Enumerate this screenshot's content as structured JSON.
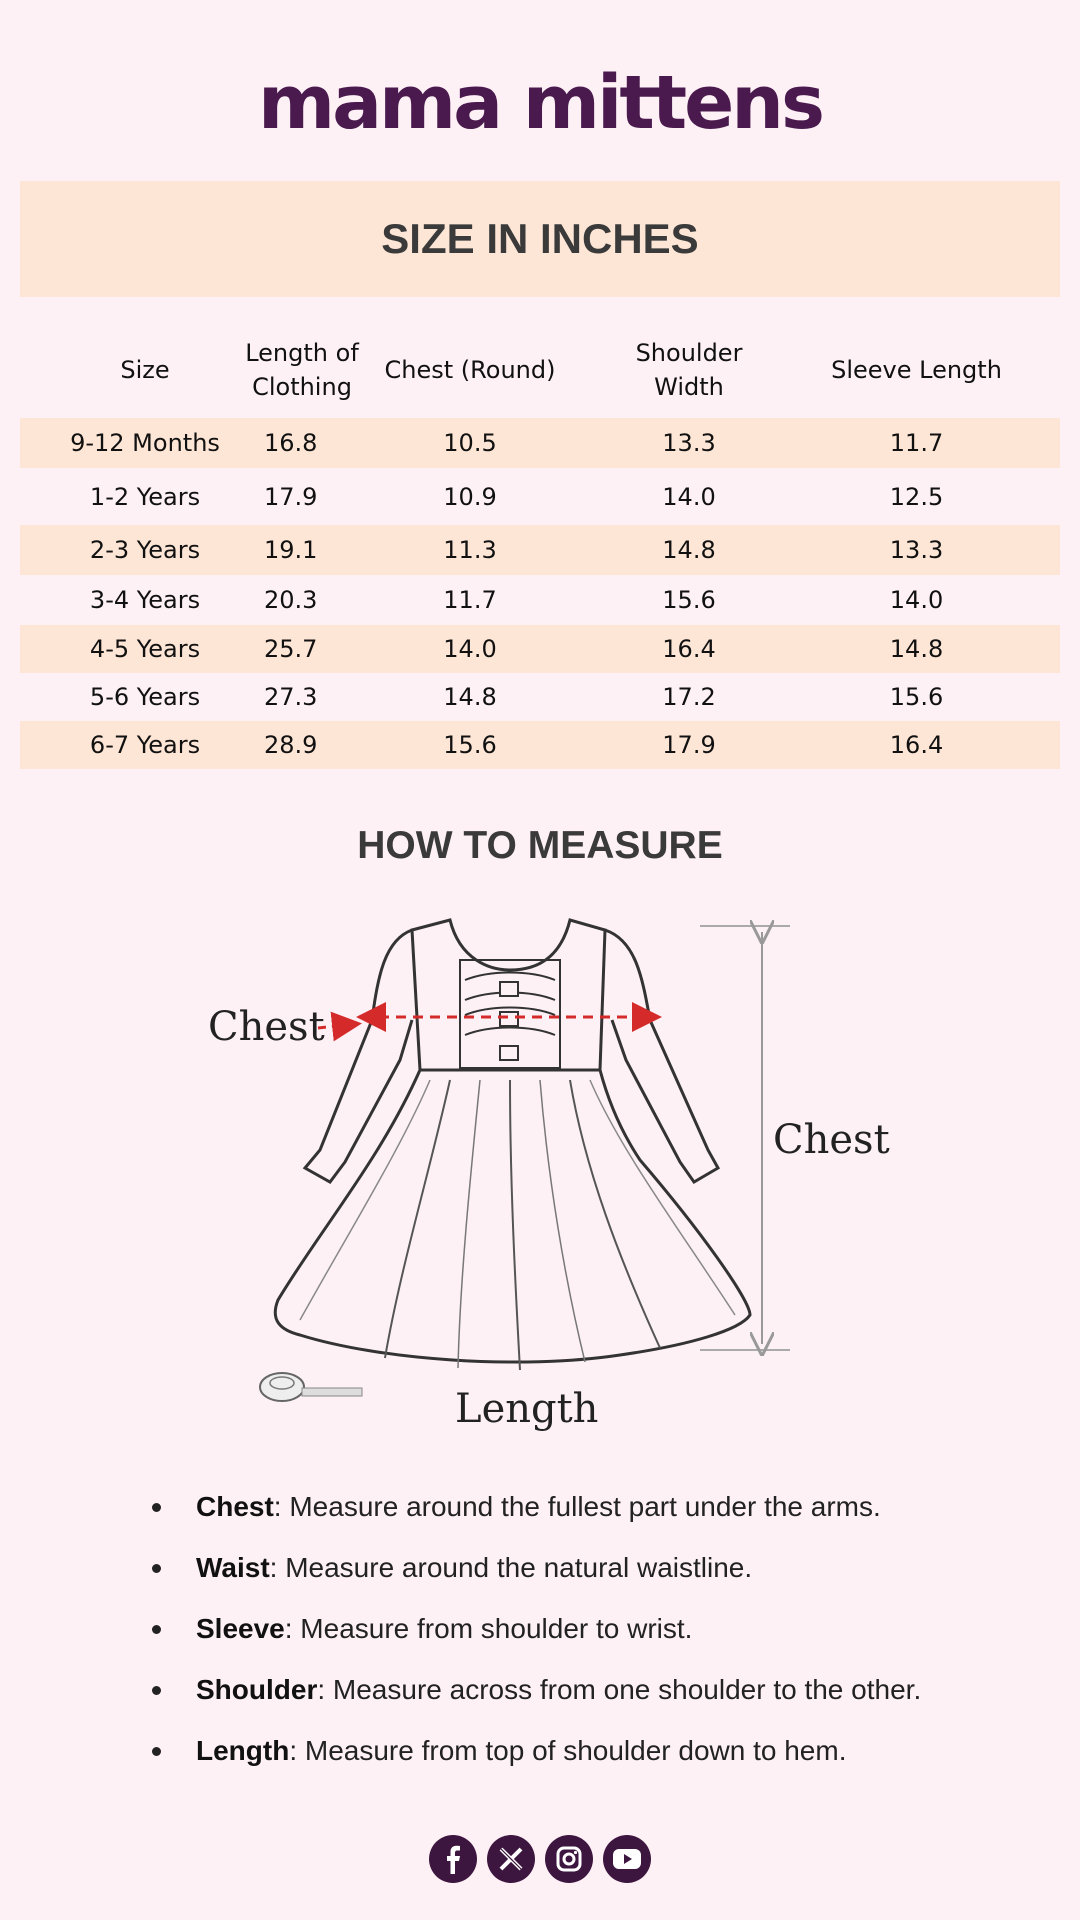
{
  "brand": {
    "name": "mama mittens"
  },
  "banner": {
    "title": "SIZE IN INCHES"
  },
  "table": {
    "headers": [
      "Size",
      "Length of Clothing",
      "Chest (Round)",
      "Shoulder Width",
      "Sleeve Length"
    ],
    "rows": [
      [
        "9-12 Months",
        "16.8",
        "10.5",
        "13.3",
        "11.7"
      ],
      [
        "1-2 Years",
        "17.9",
        "10.9",
        "14.0",
        "12.5"
      ],
      [
        "2-3 Years",
        "19.1",
        "11.3",
        "14.8",
        "13.3"
      ],
      [
        "3-4 Years",
        "20.3",
        "11.7",
        "15.6",
        "14.0"
      ],
      [
        "4-5 Years",
        "25.7",
        "14.0",
        "16.4",
        "14.8"
      ],
      [
        "5-6 Years",
        "27.3",
        "14.8",
        "17.2",
        "15.6"
      ],
      [
        "6-7 Years",
        "28.9",
        "15.6",
        "17.9",
        "16.4"
      ]
    ]
  },
  "measure": {
    "title": "HOW TO MEASURE",
    "labels": {
      "chest_left": "Chest",
      "chest_right": "Chest",
      "length": "Length"
    }
  },
  "tips": [
    {
      "term": "Chest",
      "text": ": Measure around the fullest part under the arms."
    },
    {
      "term": "Waist",
      "text": ": Measure around the natural waistline."
    },
    {
      "term": "Sleeve",
      "text": ": Measure from shoulder to wrist."
    },
    {
      "term": "Shoulder",
      "text": ": Measure across from one shoulder to the other."
    },
    {
      "term": "Length",
      "text": ": Measure from top of shoulder down to hem."
    }
  ],
  "social": [
    "facebook-icon",
    "x-icon",
    "instagram-icon",
    "youtube-icon"
  ],
  "colors": {
    "brand": "#4a1a4e",
    "band": "#fee6d6",
    "background": "#fdf1f5",
    "arrow": "#d42a2a"
  }
}
